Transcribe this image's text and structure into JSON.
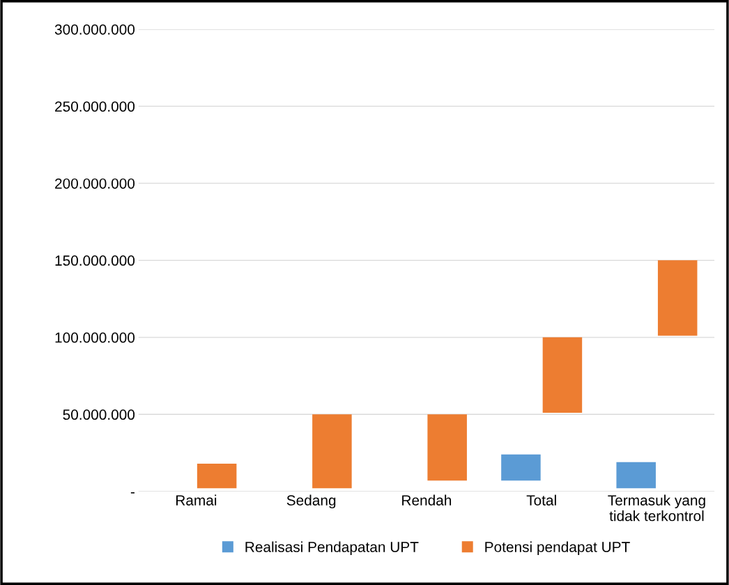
{
  "chart_data": {
    "type": "bar",
    "categories": [
      "Ramai",
      "Sedang",
      "Rendah",
      "Total",
      "Termasuk yang\ntidak terkontrol"
    ],
    "series": [
      {
        "name": "Realisasi Pendapatan UPT",
        "color": "#5b9bd5",
        "values": [
          null,
          null,
          null,
          17000000,
          17000000
        ],
        "base": [
          null,
          null,
          null,
          7000000,
          2000000
        ]
      },
      {
        "name": "Potensi pendapat UPT",
        "color": "#ed7d31",
        "values": [
          16000000,
          48000000,
          43000000,
          49000000,
          49000000
        ],
        "base": [
          2000000,
          2000000,
          7000000,
          51000000,
          101000000
        ]
      }
    ],
    "ylim": [
      0,
      300000000
    ],
    "yticks": [
      {
        "value": 0,
        "label": "-"
      },
      {
        "value": 50000000,
        "label": "50.000.000"
      },
      {
        "value": 100000000,
        "label": "100.000.000"
      },
      {
        "value": 150000000,
        "label": "150.000.000"
      },
      {
        "value": 200000000,
        "label": "200.000.000"
      },
      {
        "value": 250000000,
        "label": "250.000.000"
      },
      {
        "value": 300000000,
        "label": "300.000.000"
      }
    ],
    "grid": "y",
    "legend": "bottom"
  }
}
